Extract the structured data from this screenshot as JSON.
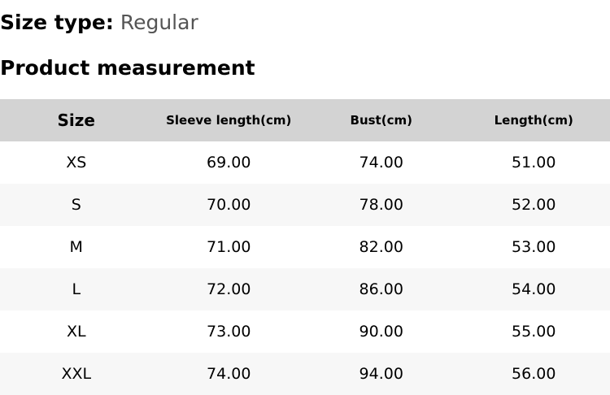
{
  "size_type": {
    "label": "Size type:",
    "value": "Regular"
  },
  "section_title": "Product measurement",
  "table": {
    "headers": [
      "Size",
      "Sleeve length(cm)",
      "Bust(cm)",
      "Length(cm)"
    ],
    "rows": [
      [
        "XS",
        "69.00",
        "74.00",
        "51.00"
      ],
      [
        "S",
        "70.00",
        "78.00",
        "52.00"
      ],
      [
        "M",
        "71.00",
        "82.00",
        "53.00"
      ],
      [
        "L",
        "72.00",
        "86.00",
        "54.00"
      ],
      [
        "XL",
        "73.00",
        "90.00",
        "55.00"
      ],
      [
        "XXL",
        "74.00",
        "94.00",
        "56.00"
      ]
    ]
  }
}
